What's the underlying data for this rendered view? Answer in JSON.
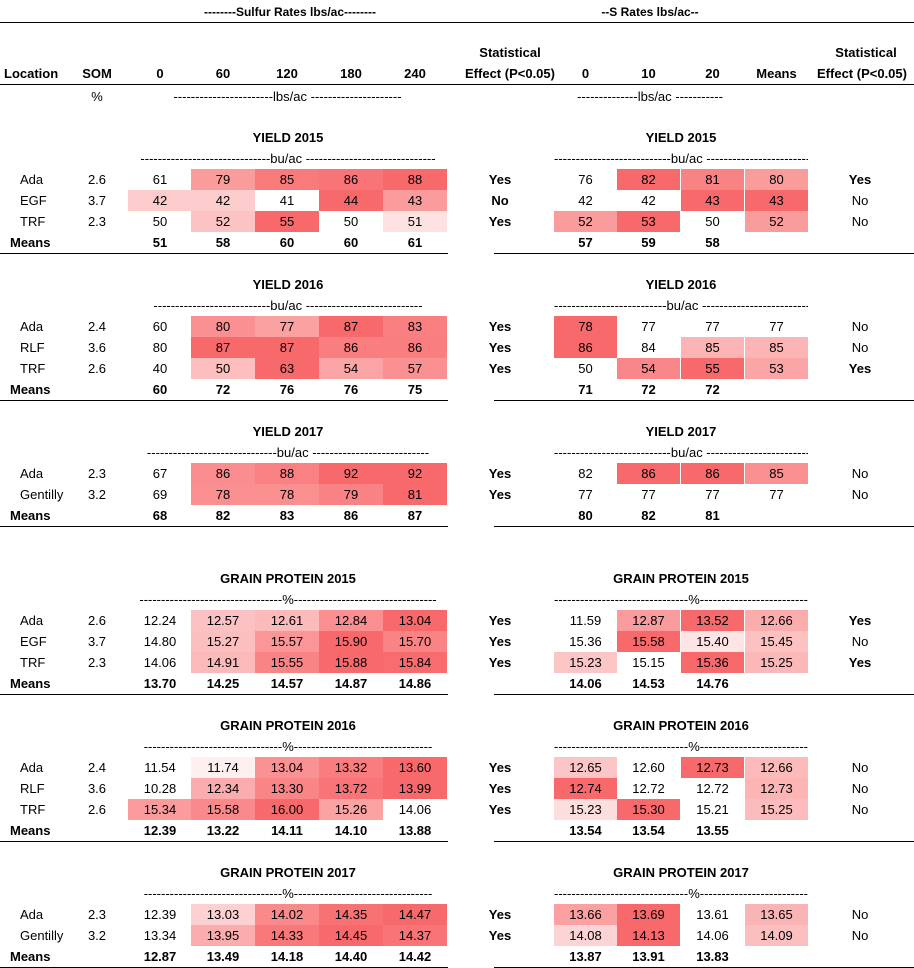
{
  "header": {
    "sulfur_rates_title": "--------Sulfur Rates lbs/ac--------",
    "s_rates_title": "--S Rates lbs/ac--",
    "location": "Location",
    "som": "SOM",
    "rates_left": [
      "0",
      "60",
      "120",
      "180",
      "240"
    ],
    "stat_line1": "Statistical",
    "stat_line2": "Effect (P<0.05)",
    "rates_right": [
      "0",
      "10",
      "20"
    ],
    "means": "Means",
    "stat2_line1": "Statistical",
    "stat2_line2": "Effect (P<0.05)",
    "percent": "%",
    "units_left": "-----------------------lbs/ac ---------------------",
    "units_right": "--------------lbs/ac -----------"
  },
  "sections": [
    {
      "title_left": "YIELD 2015",
      "title_right": "YIELD 2015",
      "unit_left": "------------------------------bu/ac ------------------------------",
      "unit_right": "---------------------------bu/ac ----------------------------",
      "rows": [
        {
          "loc": "Ada",
          "som": "2.6",
          "left": [
            "61",
            "79",
            "85",
            "86",
            "88"
          ],
          "stat": "Yes",
          "right": [
            "76",
            "82",
            "81"
          ],
          "mean": "80",
          "stat2": "Yes"
        },
        {
          "loc": "EGF",
          "som": "3.7",
          "left": [
            "42",
            "42",
            "41",
            "44",
            "43"
          ],
          "stat": "No",
          "right": [
            "42",
            "42",
            "43"
          ],
          "mean": "43",
          "stat2": "No"
        },
        {
          "loc": "TRF",
          "som": "2.3",
          "left": [
            "50",
            "52",
            "55",
            "50",
            "51"
          ],
          "stat": "Yes",
          "right": [
            "52",
            "53",
            "50"
          ],
          "mean": "52",
          "stat2": "No"
        }
      ],
      "means_label": "Means",
      "means_left": [
        "51",
        "58",
        "60",
        "60",
        "61"
      ],
      "means_right": [
        "57",
        "59",
        "58"
      ]
    },
    {
      "title_left": "YIELD 2016",
      "title_right": "YIELD 2016",
      "unit_left": "---------------------------bu/ac ---------------------------",
      "unit_right": "--------------------------bu/ac ----------------------------",
      "rows": [
        {
          "loc": "Ada",
          "som": "2.4",
          "left": [
            "60",
            "80",
            "77",
            "87",
            "83"
          ],
          "stat": "Yes",
          "right": [
            "78",
            "77",
            "77"
          ],
          "mean": "77",
          "stat2": "No"
        },
        {
          "loc": "RLF",
          "som": "3.6",
          "left": [
            "80",
            "87",
            "87",
            "86",
            "86"
          ],
          "stat": "Yes",
          "right": [
            "86",
            "84",
            "85"
          ],
          "mean": "85",
          "stat2": "No"
        },
        {
          "loc": "TRF",
          "som": "2.6",
          "left": [
            "40",
            "50",
            "63",
            "54",
            "57"
          ],
          "stat": "Yes",
          "right": [
            "50",
            "54",
            "55"
          ],
          "mean": "53",
          "stat2": "Yes"
        }
      ],
      "means_label": "Means",
      "means_left": [
        "60",
        "72",
        "76",
        "76",
        "75"
      ],
      "means_right": [
        "71",
        "72",
        "72"
      ]
    },
    {
      "title_left": "YIELD 2017",
      "title_right": "YIELD 2017",
      "unit_left": "------------------------------bu/ac ---------------------------",
      "unit_right": "---------------------------bu/ac ---------------------------",
      "rows": [
        {
          "loc": "Ada",
          "som": "2.3",
          "left": [
            "67",
            "86",
            "88",
            "92",
            "92"
          ],
          "stat": "Yes",
          "right": [
            "82",
            "86",
            "86"
          ],
          "mean": "85",
          "stat2": "No"
        },
        {
          "loc": "Gentilly",
          "som": "3.2",
          "left": [
            "69",
            "78",
            "78",
            "79",
            "81"
          ],
          "stat": "Yes",
          "right": [
            "77",
            "77",
            "77"
          ],
          "mean": "77",
          "stat2": "No"
        }
      ],
      "means_label": "Means",
      "means_left": [
        "68",
        "82",
        "83",
        "86",
        "87"
      ],
      "means_right": [
        "80",
        "82",
        "81"
      ]
    },
    {
      "title_left": "GRAIN PROTEIN 2015",
      "title_right": "GRAIN PROTEIN 2015",
      "unit_left": "---------------------------------%---------------------------------",
      "unit_right": "-------------------------------%-------------------------------",
      "rows": [
        {
          "loc": "Ada",
          "som": "2.6",
          "left": [
            "12.24",
            "12.57",
            "12.61",
            "12.84",
            "13.04"
          ],
          "stat": "Yes",
          "right": [
            "11.59",
            "12.87",
            "13.52"
          ],
          "mean": "12.66",
          "stat2": "Yes"
        },
        {
          "loc": "EGF",
          "som": "3.7",
          "left": [
            "14.80",
            "15.27",
            "15.57",
            "15.90",
            "15.70"
          ],
          "stat": "Yes",
          "right": [
            "15.36",
            "15.58",
            "15.40"
          ],
          "mean": "15.45",
          "stat2": "No"
        },
        {
          "loc": "TRF",
          "som": "2.3",
          "left": [
            "14.06",
            "14.91",
            "15.55",
            "15.88",
            "15.84"
          ],
          "stat": "Yes",
          "right": [
            "15.23",
            "15.15",
            "15.36"
          ],
          "mean": "15.25",
          "stat2": "Yes"
        }
      ],
      "means_label": "Means",
      "means_left": [
        "13.70",
        "14.25",
        "14.57",
        "14.87",
        "14.86"
      ],
      "means_right": [
        "14.06",
        "14.53",
        "14.76"
      ]
    },
    {
      "title_left": "GRAIN PROTEIN 2016",
      "title_right": "GRAIN PROTEIN 2016",
      "unit_left": "--------------------------------%--------------------------------",
      "unit_right": "-------------------------------%-------------------------------",
      "rows": [
        {
          "loc": "Ada",
          "som": "2.4",
          "left": [
            "11.54",
            "11.74",
            "13.04",
            "13.32",
            "13.60"
          ],
          "stat": "Yes",
          "right": [
            "12.65",
            "12.60",
            "12.73"
          ],
          "mean": "12.66",
          "stat2": "No"
        },
        {
          "loc": "RLF",
          "som": "3.6",
          "left": [
            "10.28",
            "12.34",
            "13.30",
            "13.72",
            "13.99"
          ],
          "stat": "Yes",
          "right": [
            "12.74",
            "12.72",
            "12.72"
          ],
          "mean": "12.73",
          "stat2": "No"
        },
        {
          "loc": "TRF",
          "som": "2.6",
          "left": [
            "15.34",
            "15.58",
            "16.00",
            "15.26",
            "14.06"
          ],
          "stat": "Yes",
          "right": [
            "15.23",
            "15.30",
            "15.21"
          ],
          "mean": "15.25",
          "stat2": "No"
        }
      ],
      "means_label": "Means",
      "means_left": [
        "12.39",
        "13.22",
        "14.11",
        "14.10",
        "13.88"
      ],
      "means_right": [
        "13.54",
        "13.54",
        "13.55"
      ]
    },
    {
      "title_left": "GRAIN PROTEIN 2017",
      "title_right": "GRAIN PROTEIN 2017",
      "unit_left": "--------------------------------%--------------------------------",
      "unit_right": "-------------------------------%-------------------------------",
      "rows": [
        {
          "loc": "Ada",
          "som": "2.3",
          "left": [
            "12.39",
            "13.03",
            "14.02",
            "14.35",
            "14.47"
          ],
          "stat": "Yes",
          "right": [
            "13.66",
            "13.69",
            "13.61"
          ],
          "mean": "13.65",
          "stat2": "No"
        },
        {
          "loc": "Gentilly",
          "som": "3.2",
          "left": [
            "13.34",
            "13.95",
            "14.33",
            "14.45",
            "14.37"
          ],
          "stat": "Yes",
          "right": [
            "14.08",
            "14.13",
            "14.06"
          ],
          "mean": "14.09",
          "stat2": "No"
        }
      ],
      "means_label": "Means",
      "means_left": [
        "12.87",
        "13.49",
        "14.18",
        "14.40",
        "14.42"
      ],
      "means_right": [
        "13.87",
        "13.91",
        "13.83"
      ]
    }
  ],
  "heat_colors": {
    "low": "#ffffff",
    "high": "#f8696b"
  }
}
